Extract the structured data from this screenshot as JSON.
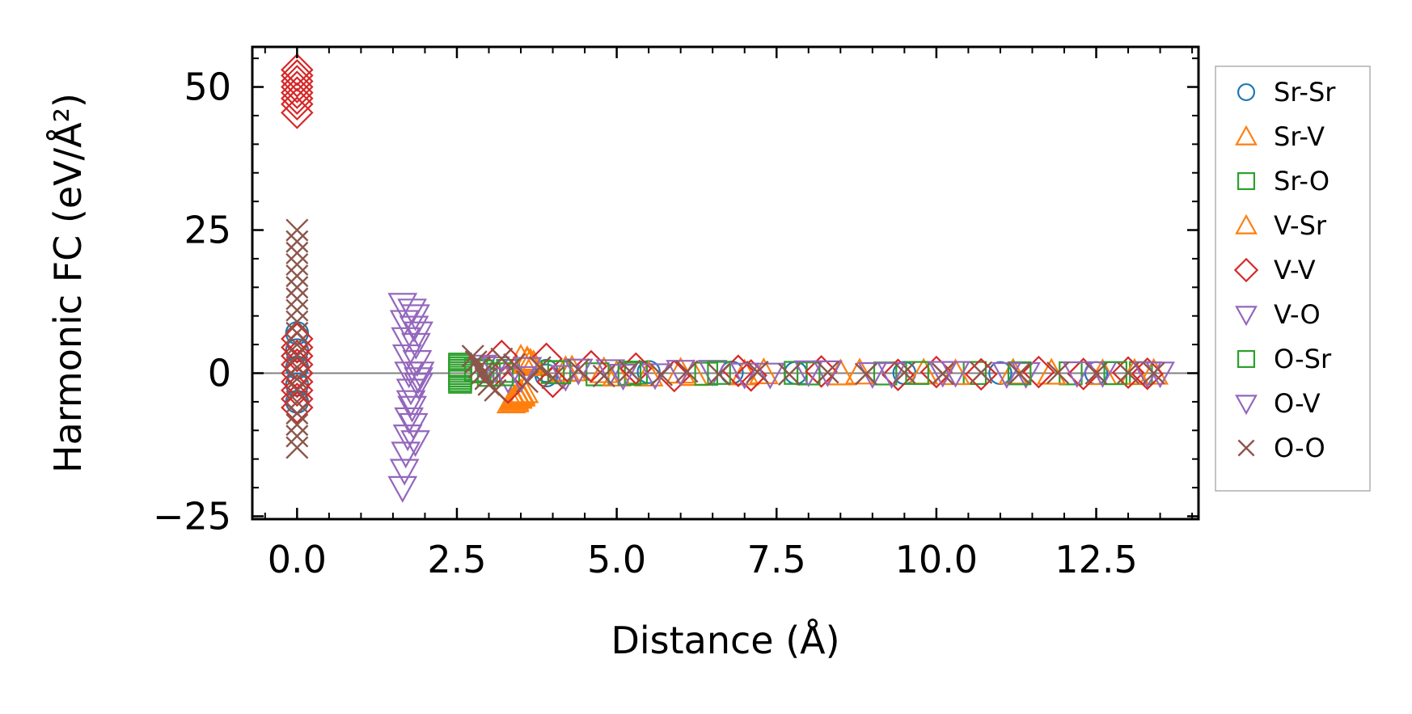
{
  "chart_data": {
    "type": "scatter",
    "title": "",
    "xlabel": "Distance (Å)",
    "ylabel": "Harmonic FC (eV/Å²)",
    "xlim": [
      -0.7,
      14.1
    ],
    "ylim": [
      -25.5,
      57
    ],
    "x_ticks": [
      0.0,
      2.5,
      5.0,
      7.5,
      10.0,
      12.5
    ],
    "x_tick_labels": [
      "0.0",
      "2.5",
      "5.0",
      "7.5",
      "10.0",
      "12.5"
    ],
    "y_ticks": [
      -25,
      0,
      25,
      50
    ],
    "y_tick_labels": [
      "−25",
      "0",
      "25",
      "50"
    ],
    "zero_line": true,
    "grid": false,
    "legend_position": "right-outside",
    "series": [
      {
        "name": "Sr-Sr",
        "marker": "circle",
        "color": "#1f77b4",
        "points": [
          [
            0,
            7
          ],
          [
            0,
            4
          ],
          [
            0,
            1
          ],
          [
            0,
            -2
          ],
          [
            0,
            -5
          ],
          [
            3.9,
            0.4
          ],
          [
            3.9,
            -0.4
          ],
          [
            5.5,
            0.2
          ],
          [
            6.8,
            0.1
          ],
          [
            7.8,
            0.05
          ],
          [
            9.5,
            0.03
          ],
          [
            11.0,
            0.02
          ],
          [
            12.5,
            0.01
          ]
        ]
      },
      {
        "name": "Sr-V",
        "marker": "triangle-up",
        "color": "#ff7f0e",
        "points": [
          [
            3.35,
            -5.0
          ],
          [
            3.4,
            -4.5
          ],
          [
            3.45,
            -4.0
          ],
          [
            3.5,
            -3.5
          ],
          [
            3.55,
            -3.2
          ],
          [
            3.5,
            2.5
          ],
          [
            3.6,
            2.0
          ],
          [
            3.7,
            1.5
          ],
          [
            4.3,
            0.6
          ],
          [
            4.8,
            0.3
          ],
          [
            5.5,
            -0.3
          ],
          [
            6.2,
            -0.2
          ],
          [
            7.3,
            0.1
          ],
          [
            8.5,
            -0.1
          ],
          [
            9.8,
            0.05
          ],
          [
            11.2,
            0.05
          ],
          [
            12.6,
            -0.05
          ],
          [
            13.4,
            0.02
          ]
        ]
      },
      {
        "name": "Sr-O",
        "marker": "square",
        "color": "#2ca02c",
        "points": [
          [
            2.55,
            1.5
          ],
          [
            2.55,
            0.8
          ],
          [
            2.55,
            0.0
          ],
          [
            2.55,
            -0.8
          ],
          [
            2.55,
            -1.5
          ],
          [
            2.8,
            0.5
          ],
          [
            3.0,
            -0.3
          ],
          [
            3.3,
            0.4
          ],
          [
            4.0,
            0.2
          ],
          [
            4.7,
            -0.2
          ],
          [
            5.3,
            0.1
          ],
          [
            6.4,
            -0.1
          ],
          [
            7.8,
            0.05
          ],
          [
            9.2,
            -0.05
          ],
          [
            10.6,
            0.03
          ],
          [
            12.1,
            -0.03
          ],
          [
            13.2,
            0.01
          ]
        ]
      },
      {
        "name": "V-Sr",
        "marker": "triangle-up",
        "color": "#ff7f0e",
        "points": [
          [
            3.4,
            -4.8
          ],
          [
            3.45,
            -4.2
          ],
          [
            3.5,
            -3.8
          ],
          [
            3.6,
            2.2
          ],
          [
            3.65,
            1.8
          ],
          [
            4.2,
            0.5
          ],
          [
            5.0,
            -0.3
          ],
          [
            6.0,
            0.2
          ],
          [
            7.0,
            -0.1
          ],
          [
            8.8,
            0.05
          ],
          [
            10.3,
            -0.05
          ],
          [
            11.8,
            0.03
          ],
          [
            13.1,
            0.01
          ]
        ]
      },
      {
        "name": "V-V",
        "marker": "diamond",
        "color": "#d62728",
        "points": [
          [
            0,
            53
          ],
          [
            0,
            52
          ],
          [
            0,
            51
          ],
          [
            0,
            50
          ],
          [
            0,
            49
          ],
          [
            0,
            48
          ],
          [
            0,
            47
          ],
          [
            0,
            45.5
          ],
          [
            0,
            6
          ],
          [
            0,
            4.5
          ],
          [
            0,
            3
          ],
          [
            0,
            1.5
          ],
          [
            0,
            0
          ],
          [
            0,
            -1.5
          ],
          [
            0,
            -3
          ],
          [
            0,
            -4.5
          ],
          [
            0,
            -6
          ],
          [
            3.2,
            3.0
          ],
          [
            3.3,
            -2.5
          ],
          [
            3.9,
            2.5
          ],
          [
            4.0,
            -1.5
          ],
          [
            4.6,
            1.2
          ],
          [
            5.3,
            0.8
          ],
          [
            5.9,
            -0.5
          ],
          [
            6.9,
            0.4
          ],
          [
            7.1,
            -0.4
          ],
          [
            8.2,
            0.3
          ],
          [
            9.4,
            -0.3
          ],
          [
            10.0,
            0.2
          ],
          [
            10.7,
            -0.2
          ],
          [
            11.6,
            0.2
          ],
          [
            12.3,
            -0.15
          ],
          [
            13.0,
            0.1
          ],
          [
            13.3,
            -0.1
          ]
        ]
      },
      {
        "name": "V-O",
        "marker": "triangle-down",
        "color": "#9467bd",
        "points": [
          [
            1.65,
            12
          ],
          [
            1.68,
            9
          ],
          [
            1.7,
            6
          ],
          [
            1.72,
            3
          ],
          [
            1.75,
            0
          ],
          [
            1.78,
            -3
          ],
          [
            1.8,
            -6
          ],
          [
            1.82,
            -9
          ],
          [
            1.85,
            -12
          ],
          [
            1.85,
            10
          ],
          [
            1.9,
            7
          ],
          [
            1.9,
            -2
          ],
          [
            1.92,
            0
          ],
          [
            2.9,
            1.2
          ],
          [
            3.3,
            -1.0
          ],
          [
            3.6,
            0.8
          ],
          [
            4.2,
            -0.6
          ],
          [
            4.9,
            0.4
          ],
          [
            5.6,
            -0.3
          ],
          [
            6.5,
            0.3
          ],
          [
            7.4,
            -0.2
          ],
          [
            8.3,
            0.2
          ],
          [
            9.3,
            -0.1
          ],
          [
            10.3,
            0.1
          ],
          [
            11.4,
            -0.1
          ],
          [
            12.6,
            0.05
          ],
          [
            13.5,
            0.0
          ]
        ]
      },
      {
        "name": "O-Sr",
        "marker": "square",
        "color": "#2ca02c",
        "points": [
          [
            2.55,
            1.2
          ],
          [
            2.55,
            0.4
          ],
          [
            2.55,
            -0.4
          ],
          [
            2.55,
            -1.2
          ],
          [
            2.9,
            0.3
          ],
          [
            3.2,
            -0.2
          ],
          [
            4.1,
            0.15
          ],
          [
            5.2,
            -0.1
          ],
          [
            6.6,
            0.05
          ],
          [
            8.0,
            -0.05
          ],
          [
            9.7,
            0.03
          ],
          [
            11.3,
            -0.02
          ],
          [
            12.8,
            0.01
          ]
        ]
      },
      {
        "name": "O-V",
        "marker": "triangle-down",
        "color": "#9467bd",
        "points": [
          [
            1.65,
            -20
          ],
          [
            1.68,
            -17
          ],
          [
            1.7,
            -14
          ],
          [
            1.73,
            -11
          ],
          [
            1.75,
            -8
          ],
          [
            1.78,
            -5
          ],
          [
            1.8,
            11
          ],
          [
            1.83,
            8
          ],
          [
            1.86,
            5
          ],
          [
            1.88,
            2
          ],
          [
            1.9,
            -1
          ],
          [
            3.1,
            0.9
          ],
          [
            3.5,
            -0.8
          ],
          [
            4.4,
            0.5
          ],
          [
            5.1,
            -0.4
          ],
          [
            6.0,
            0.3
          ],
          [
            7.0,
            -0.2
          ],
          [
            8.0,
            0.2
          ],
          [
            9.0,
            -0.1
          ],
          [
            10.1,
            0.1
          ],
          [
            11.1,
            -0.1
          ],
          [
            12.2,
            0.05
          ],
          [
            13.3,
            0.02
          ]
        ]
      },
      {
        "name": "O-O",
        "marker": "x",
        "color": "#8c564b",
        "points": [
          [
            0,
            25
          ],
          [
            0,
            23
          ],
          [
            0,
            21
          ],
          [
            0,
            19
          ],
          [
            0,
            17
          ],
          [
            0,
            15
          ],
          [
            0,
            13
          ],
          [
            0,
            11
          ],
          [
            0,
            9
          ],
          [
            0,
            7
          ],
          [
            0,
            5
          ],
          [
            0,
            3
          ],
          [
            0,
            1
          ],
          [
            0,
            -1
          ],
          [
            0,
            -3
          ],
          [
            0,
            -5
          ],
          [
            0,
            -7
          ],
          [
            0,
            -9
          ],
          [
            0,
            -11
          ],
          [
            0,
            -13
          ],
          [
            2.75,
            3.0
          ],
          [
            2.8,
            2.0
          ],
          [
            2.85,
            1.0
          ],
          [
            2.9,
            0.0
          ],
          [
            2.95,
            -1.0
          ],
          [
            3.0,
            -2.0
          ],
          [
            3.1,
            -3.0
          ],
          [
            3.2,
            2.5
          ],
          [
            3.4,
            1.5
          ],
          [
            3.6,
            -1.5
          ],
          [
            3.8,
            1.0
          ],
          [
            4.0,
            -0.8
          ],
          [
            4.4,
            0.6
          ],
          [
            4.8,
            -0.5
          ],
          [
            5.2,
            0.4
          ],
          [
            5.7,
            -0.3
          ],
          [
            6.1,
            0.3
          ],
          [
            6.6,
            -0.2
          ],
          [
            7.2,
            0.2
          ],
          [
            7.7,
            -0.2
          ],
          [
            8.3,
            0.15
          ],
          [
            8.9,
            -0.15
          ],
          [
            9.5,
            0.1
          ],
          [
            10.1,
            -0.1
          ],
          [
            10.7,
            0.1
          ],
          [
            11.3,
            -0.08
          ],
          [
            11.9,
            0.05
          ],
          [
            12.5,
            -0.05
          ],
          [
            13.0,
            0.05
          ],
          [
            13.4,
            0.0
          ]
        ]
      }
    ]
  }
}
